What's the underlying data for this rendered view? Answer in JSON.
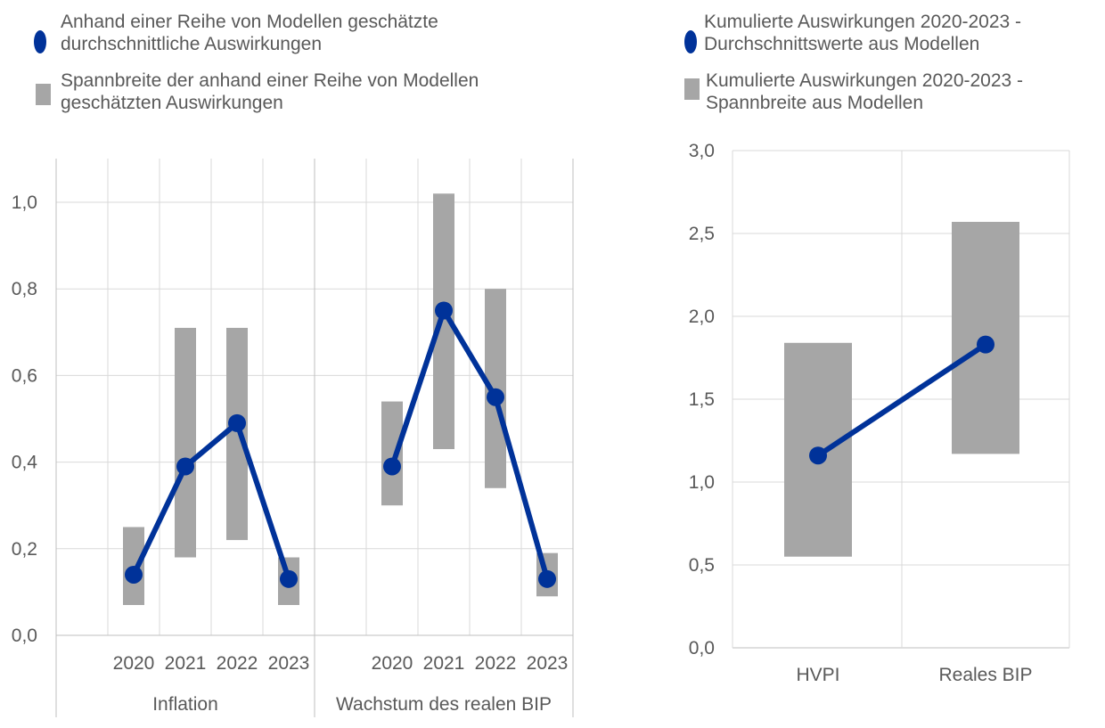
{
  "colors": {
    "mean": "#003299",
    "range": "#a6a6a6",
    "grid": "#d9d9d9"
  },
  "chart_data": [
    {
      "type": "bar+line",
      "title": "",
      "legend": [
        "Anhand einer Reihe von Modellen geschätzte durchschnittliche Auswirkungen",
        "Spannbreite der anhand einer Reihe von Modellen geschätzten Auswirkungen"
      ],
      "groups": [
        {
          "name": "Inflation",
          "categories": [
            "2020",
            "2021",
            "2022",
            "2023"
          ],
          "mean": [
            0.14,
            0.39,
            0.49,
            0.13
          ],
          "range_low": [
            0.07,
            0.18,
            0.22,
            0.07
          ],
          "range_high": [
            0.25,
            0.71,
            0.71,
            0.18
          ]
        },
        {
          "name": "Wachstum des realen BIP",
          "categories": [
            "2020",
            "2021",
            "2022",
            "2023"
          ],
          "mean": [
            0.39,
            0.75,
            0.55,
            0.13
          ],
          "range_low": [
            0.3,
            0.43,
            0.34,
            0.09
          ],
          "range_high": [
            0.54,
            1.02,
            0.8,
            0.19
          ]
        }
      ],
      "ylim": [
        0,
        1.1
      ],
      "yticks": [
        "0,0",
        "0,2",
        "0,4",
        "0,6",
        "0,8",
        "1,0"
      ],
      "ytick_values": [
        0,
        0.2,
        0.4,
        0.6,
        0.8,
        1.0
      ]
    },
    {
      "type": "bar+line",
      "title": "",
      "legend": [
        "Kumulierte Auswirkungen 2020-2023 - Durchschnittswerte aus Modellen",
        "Kumulierte Auswirkungen 2020-2023 - Spannbreite aus Modellen"
      ],
      "categories": [
        "HVPI",
        "Reales BIP"
      ],
      "mean": [
        1.16,
        1.83
      ],
      "range_low": [
        0.55,
        1.17
      ],
      "range_high": [
        1.84,
        2.57
      ],
      "ylim": [
        0,
        3.0
      ],
      "yticks": [
        "0,0",
        "0,5",
        "1,0",
        "1,5",
        "2,0",
        "2,5",
        "3,0"
      ],
      "ytick_values": [
        0,
        0.5,
        1,
        1.5,
        2,
        2.5,
        3
      ]
    }
  ]
}
